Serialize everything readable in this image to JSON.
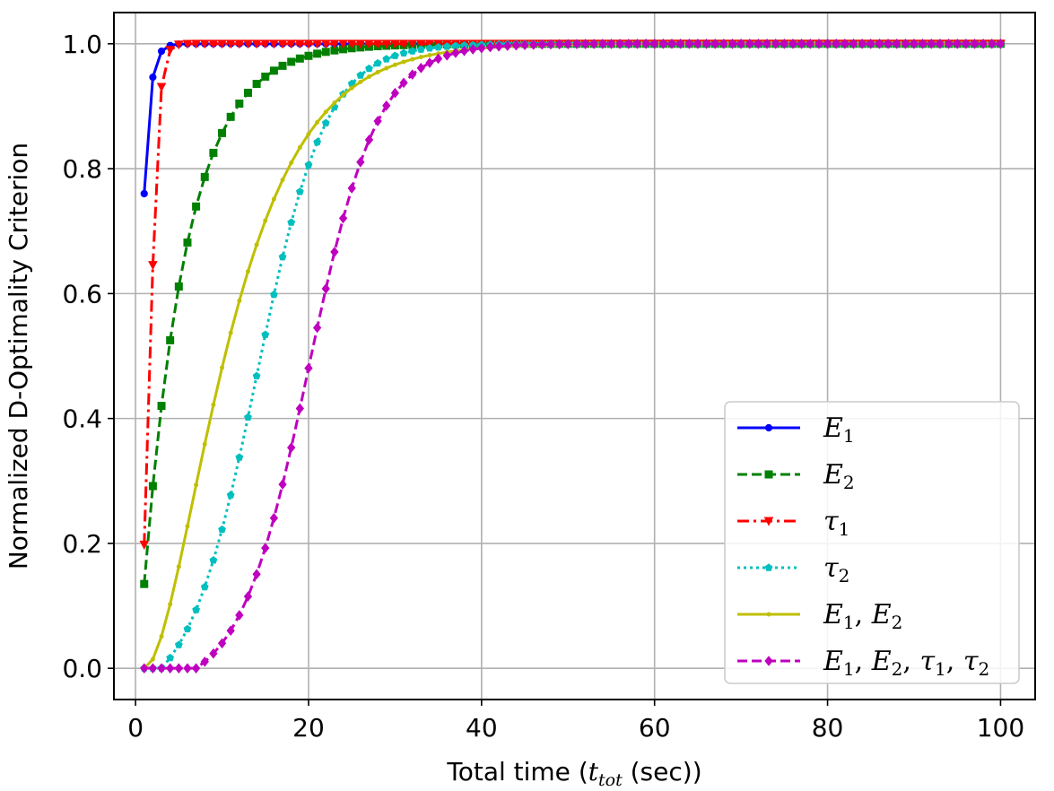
{
  "chart_data": {
    "type": "line",
    "xlabel_prefix": "Total time (",
    "xlabel_var": "t",
    "xlabel_sub": "tot",
    "xlabel_suffix": " (sec))",
    "ylabel": "Normalized D-Optimality Criterion",
    "xlim": [
      -2.5,
      104
    ],
    "ylim": [
      -0.05,
      1.05
    ],
    "xticks": [
      0,
      20,
      40,
      60,
      80,
      100
    ],
    "xtick_labels": [
      "0",
      "20",
      "40",
      "60",
      "80",
      "100"
    ],
    "yticks": [
      0.0,
      0.2,
      0.4,
      0.6,
      0.8,
      1.0
    ],
    "ytick_labels": [
      "0.0",
      "0.2",
      "0.4",
      "0.6",
      "0.8",
      "1.0"
    ],
    "grid": true,
    "legend_position": "lower-right",
    "x": [
      1,
      100,
      1
    ],
    "series": [
      {
        "key": "E1",
        "legend_main": "E",
        "legend_sub": "1",
        "color": "#0000ff",
        "linestyle": "solid",
        "marker": "circle",
        "model": {
          "type": "exp_saturate",
          "y0": 0.76,
          "k": 1.5
        }
      },
      {
        "key": "E2",
        "legend_main": "E",
        "legend_sub": "2",
        "color": "#008000",
        "linestyle": "dashed",
        "marker": "square",
        "model": {
          "type": "exp_saturate",
          "y0": 0.135,
          "k": 0.2
        }
      },
      {
        "key": "tau1",
        "legend_main": "τ",
        "legend_sub": "1",
        "color": "#ff0000",
        "linestyle": "dashdot",
        "marker": "triangle-down",
        "model": {
          "type": "logistic",
          "x0": 1.7,
          "s": 0.5
        }
      },
      {
        "key": "tau2",
        "legend_main": "τ",
        "legend_sub": "2",
        "color": "#00bfbf",
        "linestyle": "dotted",
        "marker": "pentagon",
        "model": {
          "type": "logistic_lag",
          "x0": 14.0,
          "s": 4.0,
          "lag": 2.0
        }
      },
      {
        "key": "E1E2",
        "legend_items": [
          {
            "main": "E",
            "sub": "1"
          },
          {
            "main": "E",
            "sub": "2"
          }
        ],
        "color": "#bfbf00",
        "linestyle": "solid",
        "marker": "point",
        "model": {
          "type": "exp_lag",
          "k": 0.18,
          "lag": 1.0
        }
      },
      {
        "key": "all",
        "legend_items": [
          {
            "main": "E",
            "sub": "1"
          },
          {
            "main": "E",
            "sub": "2"
          },
          {
            "main": "τ",
            "sub": "1"
          },
          {
            "main": "τ",
            "sub": "2"
          }
        ],
        "color": "#bf00bf",
        "linestyle": "dashed",
        "marker": "diamond",
        "model": {
          "type": "logistic_lag",
          "x0": 20.0,
          "s": 4.0,
          "lag": 6.0
        }
      }
    ]
  }
}
